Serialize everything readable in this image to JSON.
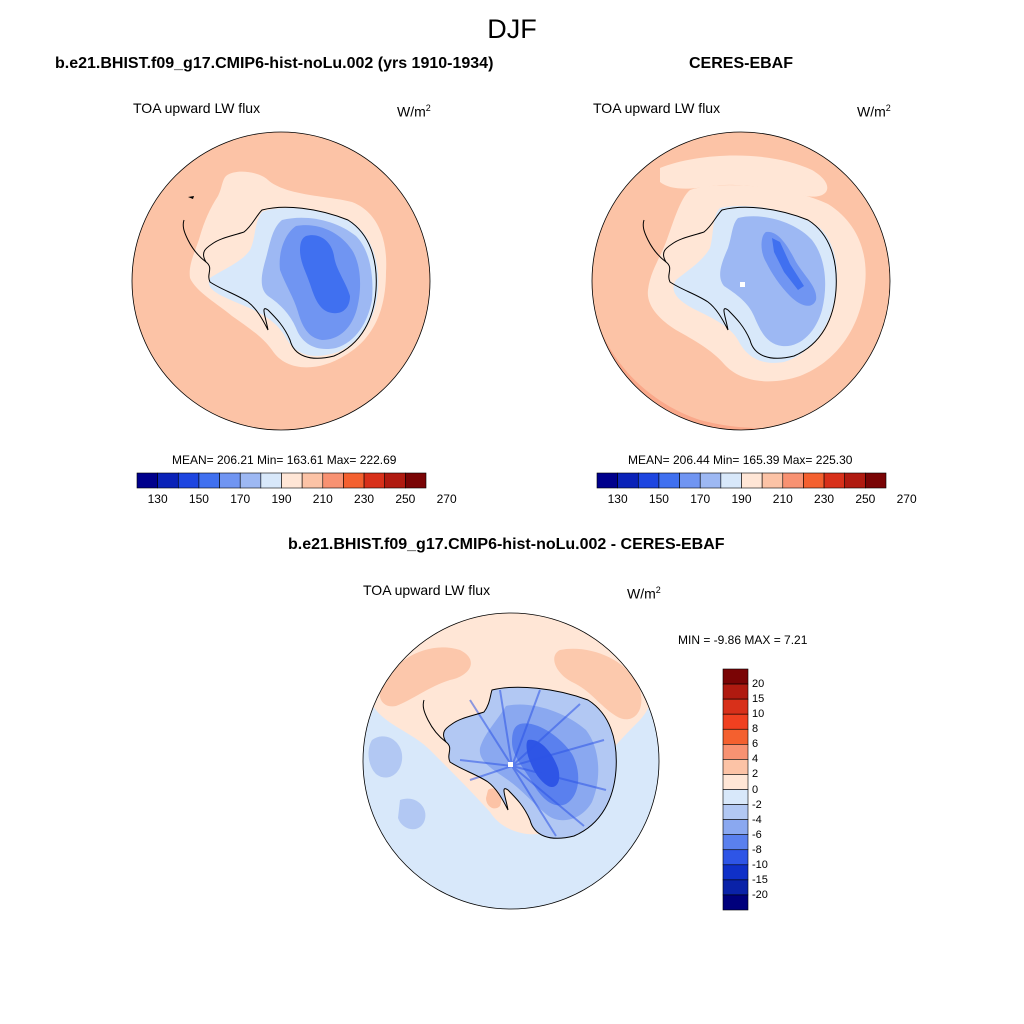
{
  "title": "DJF",
  "panels": [
    {
      "case_title": "b.e21.BHIST.f09_g17.CMIP6-hist-noLu.002 (yrs 1910-1934)",
      "variable": "TOA upward LW flux",
      "units_base": "W/m",
      "units_exp": "2",
      "stats": "MEAN= 206.21  Min= 163.61  Max= 222.69",
      "colorbar_labels": [
        "130",
        "150",
        "170",
        "190",
        "210",
        "230",
        "250",
        "270"
      ]
    },
    {
      "case_title": "CERES-EBAF",
      "variable": "TOA upward LW flux",
      "units_base": "W/m",
      "units_exp": "2",
      "stats": "MEAN= 206.44  Min= 165.39  Max= 225.30",
      "colorbar_labels": [
        "130",
        "150",
        "170",
        "190",
        "210",
        "230",
        "250",
        "270"
      ]
    }
  ],
  "difference": {
    "case_title": "b.e21.BHIST.f09_g17.CMIP6-hist-noLu.002 - CERES-EBAF",
    "variable": "TOA upward LW flux",
    "units_base": "W/m",
    "units_exp": "2",
    "stats": "MIN =  -9.86 MAX =   7.21",
    "colorbar_labels": [
      "20",
      "15",
      "10",
      "8",
      "6",
      "4",
      "2",
      "0",
      "-2",
      "-4",
      "-6",
      "-8",
      "-10",
      "-15",
      "-20"
    ]
  },
  "colors": {
    "abs_colorbar": [
      "#00008c",
      "#0a22b8",
      "#1d45e0",
      "#4070f0",
      "#7095f2",
      "#9db8f3",
      "#d8e8fa",
      "#ffe6d6",
      "#fcc3a6",
      "#f89272",
      "#f4602f",
      "#d8301a",
      "#b01a10",
      "#7a0405"
    ],
    "diff_colorbar": [
      "#7a0405",
      "#b01a10",
      "#d8301a",
      "#f04020",
      "#f4602f",
      "#f89272",
      "#fcc3a6",
      "#ffe6d6",
      "#d8e8fa",
      "#b2c8f3",
      "#8aa8f0",
      "#5a80ee",
      "#2e55e6",
      "#0f30c8",
      "#0a22a8",
      "#00007c"
    ],
    "ocean_panel1": "#fcc3a6",
    "ocean_panel2": "#fcc3a6",
    "diff_ocean_neg": "#d8e8fa",
    "diff_ocean_pos": "#ffe6d6"
  }
}
